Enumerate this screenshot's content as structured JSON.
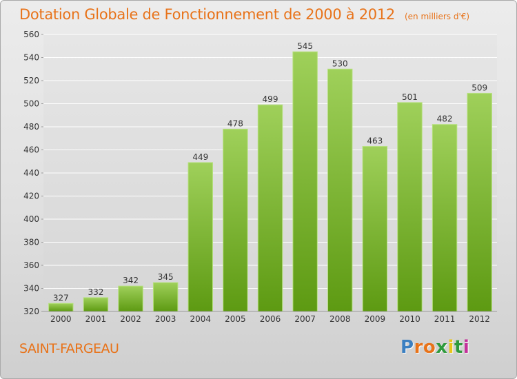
{
  "title": "Dotation Globale de Fonctionnement de 2000 à 2012",
  "unit_note": "(en milliers d'€)",
  "commune": "SAINT-FARGEAU",
  "brand": {
    "logo_text": "Proxiti",
    "letter_colors": [
      "#3a7fc1",
      "#e8731a",
      "#e8731a",
      "#2e9a3c",
      "#e8c51a",
      "#2e9a3c",
      "#c4309a"
    ]
  },
  "colors": {
    "title": "#e8731a",
    "bar_top": "#9fd05a",
    "bar_bottom": "#5d9a12",
    "grid": "#ffffff"
  },
  "chart_data": {
    "type": "bar",
    "title": "Dotation Globale de Fonctionnement de 2000 à 2012",
    "xlabel": "",
    "ylabel": "",
    "categories": [
      "2000",
      "2001",
      "2002",
      "2003",
      "2004",
      "2005",
      "2006",
      "2007",
      "2008",
      "2009",
      "2010",
      "2011",
      "2012"
    ],
    "values": [
      327,
      332,
      342,
      345,
      449,
      478,
      499,
      545,
      530,
      463,
      501,
      482,
      509
    ],
    "ylim": [
      320,
      560
    ],
    "yticks": [
      320,
      340,
      360,
      380,
      400,
      420,
      440,
      460,
      480,
      500,
      520,
      540,
      560
    ],
    "grid": true,
    "legend": "none"
  }
}
